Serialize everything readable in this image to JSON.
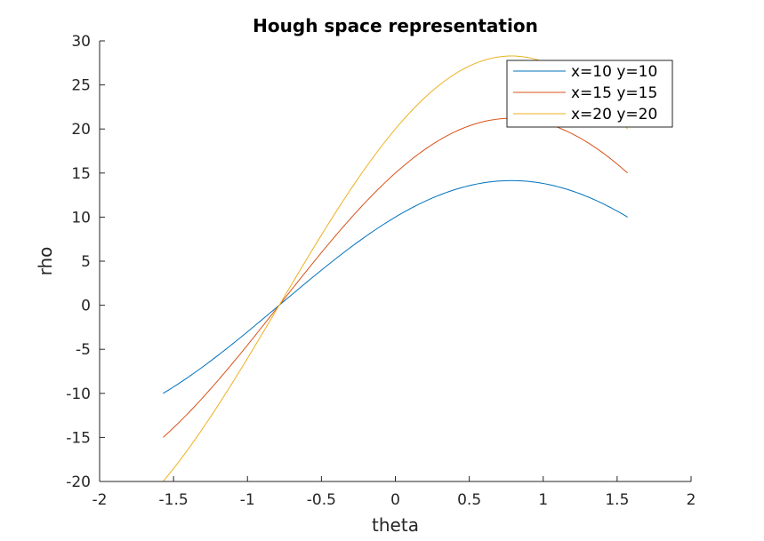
{
  "chart_data": {
    "type": "line",
    "title": "Hough space representation",
    "xlabel": "theta",
    "ylabel": "rho",
    "xlim": [
      -2,
      2
    ],
    "ylim": [
      -20,
      30
    ],
    "xticks": [
      -2,
      -1.5,
      -1,
      -0.5,
      0,
      0.5,
      1,
      1.5,
      2
    ],
    "xtick_labels": [
      "-2",
      "-1.5",
      "-1",
      "-0.5",
      "0",
      "0.5",
      "1",
      "1.5",
      "2"
    ],
    "yticks": [
      -20,
      -15,
      -10,
      -5,
      0,
      5,
      10,
      15,
      20,
      25,
      30
    ],
    "ytick_labels": [
      "-20",
      "-15",
      "-10",
      "-5",
      "0",
      "5",
      "10",
      "15",
      "20",
      "25",
      "30"
    ],
    "grid": false,
    "legend_position": "top-right",
    "theta_range": [
      -1.5708,
      1.5708
    ],
    "series": [
      {
        "name": "x=10 y=10",
        "x": 10,
        "y": 10,
        "color": "#0072BD"
      },
      {
        "name": "x=15 y=15",
        "x": 15,
        "y": 15,
        "color": "#D95319"
      },
      {
        "name": "x=20 y=20",
        "x": 20,
        "y": 20,
        "color": "#EDB120"
      }
    ]
  }
}
